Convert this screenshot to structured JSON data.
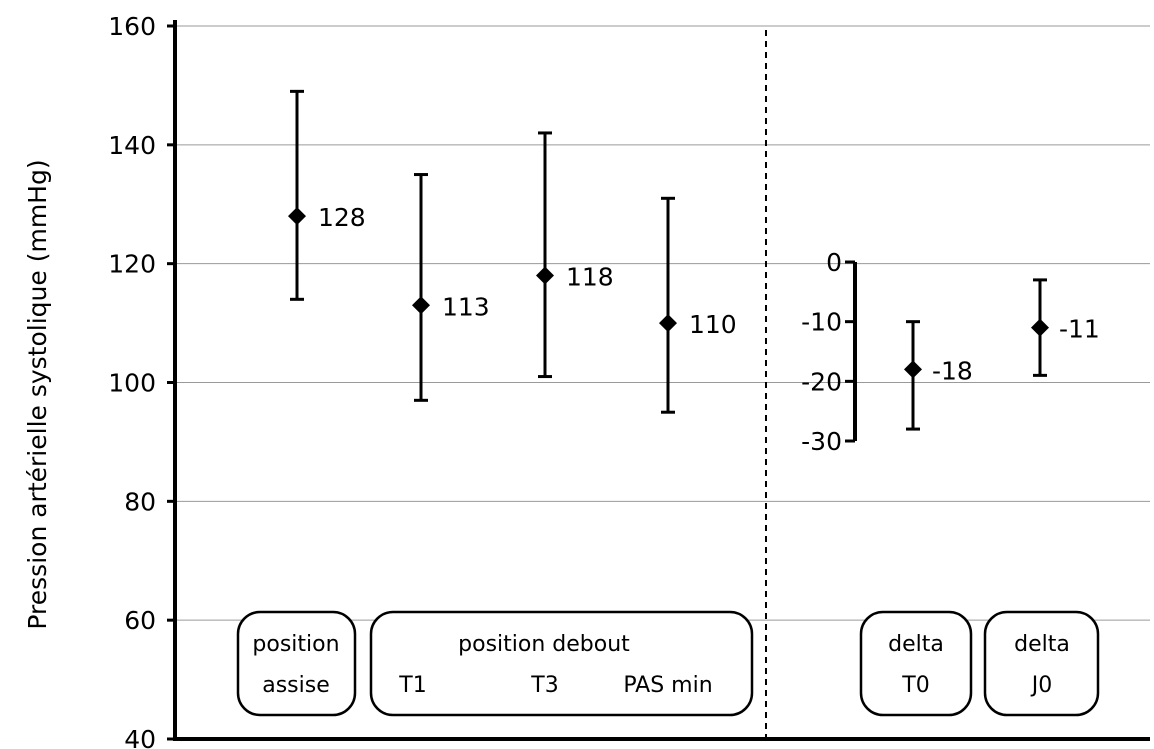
{
  "chart_data": {
    "type": "scatter",
    "ylabel": "Pression artérielle systolique (mmHg)",
    "ylim": [
      40,
      160
    ],
    "yticks": [
      "160",
      "140",
      "120",
      "100",
      "80",
      "60",
      "40"
    ],
    "grid": true,
    "main_panel": {
      "points": [
        {
          "label": "128",
          "value": 128,
          "low": 114,
          "high": 149
        },
        {
          "label": "113",
          "value": 113,
          "low": 97,
          "high": 135
        },
        {
          "label": "118",
          "value": 118,
          "low": 101,
          "high": 142
        },
        {
          "label": "110",
          "value": 110,
          "low": 95,
          "high": 131
        }
      ]
    },
    "delta_panel": {
      "ylim": [
        -30,
        0
      ],
      "yticks": [
        "0",
        "-10",
        "-20",
        "-30"
      ],
      "points": [
        {
          "label": "-18",
          "value": -18,
          "low": -28,
          "high": -10
        },
        {
          "label": "-11",
          "value": -11,
          "low": -19,
          "high": -3
        }
      ]
    },
    "groups": [
      {
        "top": "position",
        "bottom": [
          "assise"
        ]
      },
      {
        "top": "position debout",
        "bottom": [
          "T1",
          "T3",
          "PAS min"
        ]
      },
      {
        "top": "delta",
        "bottom": [
          "T0"
        ]
      },
      {
        "top": "delta",
        "bottom": [
          "J0"
        ]
      }
    ]
  }
}
